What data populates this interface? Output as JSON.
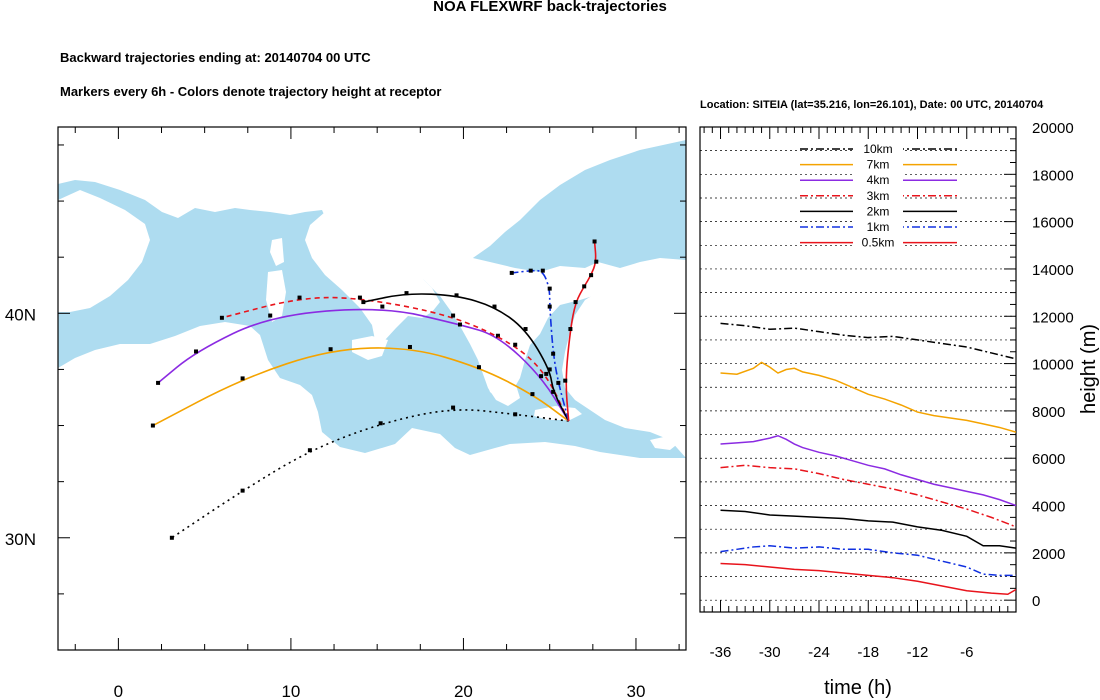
{
  "header": {
    "title": "NOA FLEXWRF back-trajectories",
    "subtitle_1": "Backward trajectories ending at: 20140704  00 UTC",
    "subtitle_2": "Markers every 6h - Colors denote trajectory height at receptor"
  },
  "colors": {
    "sea": "#aedcf0",
    "land": "#ffffff",
    "10km": "#000000",
    "7km": "#f4a300",
    "4km": "#8b2be2",
    "3km": "#e8141c",
    "2km": "#000000",
    "1km": "#1030e0",
    "0.5km": "#e8141c"
  },
  "chart_data": [
    {
      "type": "line",
      "panel": "map",
      "xlabel_ticks": [
        "0",
        "10",
        "20",
        "30"
      ],
      "x_ticks": [
        0,
        10,
        20,
        30
      ],
      "ylabel_ticks": [
        "40N",
        "30N"
      ],
      "y_ticks": [
        40,
        30
      ],
      "xlim": [
        -3.5,
        32.9
      ],
      "ylim": [
        25,
        48.3
      ],
      "receptor": [
        26.1,
        35.2
      ],
      "series": [
        {
          "key": "10km",
          "style": "dotted",
          "points": [
            [
              26.1,
              35.2
            ],
            [
              23.0,
              35.5
            ],
            [
              19.4,
              35.8
            ],
            [
              15.2,
              35.1
            ],
            [
              11.1,
              33.9
            ],
            [
              7.2,
              32.1
            ],
            [
              3.1,
              30.0
            ]
          ]
        },
        {
          "key": "7km",
          "style": "solid",
          "points": [
            [
              26.1,
              35.2
            ],
            [
              24.0,
              36.4
            ],
            [
              20.9,
              37.6
            ],
            [
              16.9,
              38.5
            ],
            [
              12.3,
              38.4
            ],
            [
              7.2,
              37.1
            ],
            [
              2.0,
              35.0
            ]
          ]
        },
        {
          "key": "4km",
          "style": "solid",
          "points": [
            [
              26.1,
              35.2
            ],
            [
              24.5,
              37.2
            ],
            [
              22.0,
              39.0
            ],
            [
              19.8,
              39.5
            ],
            [
              15.3,
              40.3
            ],
            [
              8.8,
              39.9
            ],
            [
              4.5,
              38.3
            ],
            [
              2.3,
              36.9
            ]
          ]
        },
        {
          "key": "3km",
          "style": "dashed",
          "points": [
            [
              26.1,
              35.2
            ],
            [
              24.8,
              37.3
            ],
            [
              23.0,
              38.6
            ],
            [
              19.4,
              39.9
            ],
            [
              14.0,
              40.7
            ],
            [
              10.5,
              40.7
            ],
            [
              6.0,
              39.8
            ]
          ]
        },
        {
          "key": "2km",
          "style": "solid",
          "points": [
            [
              26.1,
              35.2
            ],
            [
              25.2,
              36.5
            ],
            [
              25.0,
              37.5
            ],
            [
              23.6,
              39.3
            ],
            [
              21.8,
              40.3
            ],
            [
              19.6,
              40.8
            ],
            [
              16.7,
              40.9
            ],
            [
              14.2,
              40.5
            ]
          ]
        },
        {
          "key": "1km",
          "style": "dashdot",
          "points": [
            [
              26.1,
              35.2
            ],
            [
              25.5,
              36.9
            ],
            [
              25.2,
              38.2
            ],
            [
              25.0,
              40.3
            ],
            [
              25.0,
              41.1
            ],
            [
              24.6,
              41.9
            ],
            [
              23.9,
              41.9
            ],
            [
              22.8,
              41.8
            ]
          ]
        },
        {
          "key": "0.5km",
          "style": "solid",
          "points": [
            [
              26.1,
              35.2
            ],
            [
              25.9,
              37.0
            ],
            [
              26.2,
              39.3
            ],
            [
              26.5,
              40.5
            ],
            [
              27.0,
              41.2
            ],
            [
              27.4,
              41.7
            ],
            [
              27.7,
              42.3
            ],
            [
              27.6,
              43.2
            ]
          ]
        }
      ]
    },
    {
      "type": "line",
      "panel": "height-time",
      "title": "Location: SITEIA (lat=35.216,  lon=26.101), Date: 00 UTC, 20140704",
      "xlabel": "time (h)",
      "ylabel": "height (m)",
      "x_ticks": [
        "-36",
        "-30",
        "-24",
        "-18",
        "-12",
        "-6"
      ],
      "x_tick_values": [
        -36,
        -30,
        -24,
        -18,
        -12,
        -6
      ],
      "y_ticks": [
        "20000",
        "18000",
        "16000",
        "14000",
        "12000",
        "10000",
        "8000",
        "6000",
        "4000",
        "2000",
        "0"
      ],
      "y_tick_values": [
        20000,
        18000,
        16000,
        14000,
        12000,
        10000,
        8000,
        6000,
        4000,
        2000,
        0
      ],
      "xlim": [
        -38.5,
        0
      ],
      "ylim": [
        -500,
        20000
      ],
      "legend": [
        "10km",
        "7km",
        "4km",
        "3km",
        "2km",
        "1km",
        "0.5km"
      ],
      "series": [
        {
          "name": "10km",
          "style": "dashdot",
          "x": [
            -36,
            -33,
            -30,
            -27,
            -24,
            -21,
            -18,
            -15,
            -12,
            -9,
            -6,
            -3,
            0
          ],
          "y": [
            11700,
            11600,
            11450,
            11500,
            11350,
            11200,
            11100,
            11150,
            11000,
            10850,
            10700,
            10450,
            10200
          ]
        },
        {
          "name": "7km",
          "style": "solid",
          "x": [
            -36,
            -34,
            -32,
            -31,
            -30,
            -29,
            -28,
            -27,
            -26,
            -24,
            -22,
            -20,
            -18,
            -16,
            -14,
            -12,
            -10,
            -8,
            -6,
            -4,
            -2,
            0
          ],
          "y": [
            9600,
            9550,
            9800,
            10050,
            9850,
            9600,
            9750,
            9800,
            9650,
            9500,
            9300,
            9000,
            8700,
            8500,
            8250,
            7950,
            7800,
            7700,
            7600,
            7450,
            7300,
            7100
          ]
        },
        {
          "name": "4km",
          "style": "solid",
          "x": [
            -36,
            -34,
            -32,
            -30,
            -29,
            -28,
            -27,
            -26,
            -24,
            -22,
            -20,
            -18,
            -16,
            -14,
            -12,
            -10,
            -8,
            -6,
            -4,
            -2,
            0
          ],
          "y": [
            6600,
            6650,
            6700,
            6850,
            6950,
            6800,
            6600,
            6450,
            6250,
            6100,
            5900,
            5700,
            5550,
            5300,
            5100,
            4900,
            4750,
            4600,
            4450,
            4250,
            4000
          ]
        },
        {
          "name": "3km",
          "style": "dashdot",
          "x": [
            -36,
            -33,
            -30,
            -27,
            -24,
            -21,
            -18,
            -15,
            -12,
            -9,
            -6,
            -3,
            0
          ],
          "y": [
            5600,
            5700,
            5600,
            5550,
            5350,
            5100,
            4900,
            4700,
            4450,
            4150,
            3850,
            3500,
            3100
          ]
        },
        {
          "name": "2km",
          "style": "solid",
          "x": [
            -36,
            -33,
            -30,
            -27,
            -24,
            -21,
            -18,
            -15,
            -12,
            -9,
            -6,
            -4,
            -2,
            0
          ],
          "y": [
            3800,
            3750,
            3600,
            3550,
            3500,
            3450,
            3350,
            3300,
            3100,
            2950,
            2700,
            2300,
            2300,
            2200
          ]
        },
        {
          "name": "1km",
          "style": "dashdot",
          "x": [
            -36,
            -34,
            -32,
            -30,
            -27,
            -24,
            -21,
            -18,
            -15,
            -12,
            -9,
            -6,
            -4,
            -2,
            0
          ],
          "y": [
            2050,
            2150,
            2250,
            2300,
            2200,
            2250,
            2150,
            2150,
            2000,
            1900,
            1650,
            1400,
            1100,
            1050,
            1050
          ]
        },
        {
          "name": "0.5km",
          "style": "solid",
          "x": [
            -36,
            -33,
            -30,
            -27,
            -24,
            -21,
            -18,
            -15,
            -12,
            -9,
            -6,
            -3,
            -1,
            0
          ],
          "y": [
            1550,
            1500,
            1400,
            1300,
            1250,
            1150,
            1050,
            950,
            800,
            600,
            400,
            300,
            250,
            450
          ]
        }
      ]
    }
  ]
}
